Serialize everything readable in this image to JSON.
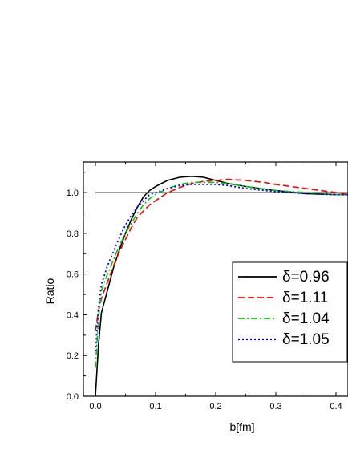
{
  "chart_data": {
    "type": "line",
    "title": "",
    "xlabel": "b[fm]",
    "ylabel": "Ratio",
    "xlim": [
      -0.02,
      0.42
    ],
    "ylim": [
      0.0,
      1.15
    ],
    "x_ticks": [
      0.0,
      0.1,
      0.2,
      0.3,
      0.4
    ],
    "x_tick_labels": [
      "0.0",
      "0.1",
      "0.2",
      "0.3",
      "0.4"
    ],
    "y_ticks": [
      0.0,
      0.2,
      0.4,
      0.6,
      0.8,
      1.0
    ],
    "y_tick_labels": [
      "0.0",
      "0.2",
      "0.4",
      "0.6",
      "0.8",
      "1.0"
    ],
    "grid": false,
    "legend_position": "center-right",
    "reference_line": {
      "y": 1.0,
      "x_range": [
        0.0,
        0.42
      ],
      "color": "#000000"
    },
    "series": [
      {
        "name": "δ=0.96",
        "color": "#000000",
        "dash": "solid",
        "x": [
          0.0,
          0.005,
          0.01,
          0.02,
          0.03,
          0.04,
          0.05,
          0.06,
          0.07,
          0.08,
          0.09,
          0.1,
          0.12,
          0.14,
          0.16,
          0.18,
          0.2,
          0.22,
          0.25,
          0.3,
          0.35,
          0.4,
          0.42
        ],
        "y": [
          0.0,
          0.25,
          0.41,
          0.52,
          0.63,
          0.72,
          0.8,
          0.87,
          0.93,
          0.98,
          1.01,
          1.03,
          1.06,
          1.075,
          1.08,
          1.075,
          1.06,
          1.045,
          1.03,
          1.01,
          0.995,
          0.99,
          0.99
        ]
      },
      {
        "name": "δ=1.11",
        "color": "#ff0000",
        "dash": "dashed",
        "x": [
          0.0,
          0.005,
          0.01,
          0.02,
          0.03,
          0.04,
          0.05,
          0.06,
          0.07,
          0.08,
          0.09,
          0.1,
          0.12,
          0.14,
          0.16,
          0.18,
          0.2,
          0.22,
          0.25,
          0.28,
          0.3,
          0.35,
          0.4,
          0.42
        ],
        "y": [
          0.32,
          0.42,
          0.48,
          0.56,
          0.64,
          0.71,
          0.77,
          0.83,
          0.88,
          0.91,
          0.94,
          0.96,
          1.0,
          1.025,
          1.045,
          1.055,
          1.06,
          1.065,
          1.06,
          1.05,
          1.04,
          1.02,
          1.0,
          0.995
        ]
      },
      {
        "name": "δ=1.04",
        "color": "#00cc00",
        "dash": "dashdot",
        "x": [
          0.0,
          0.005,
          0.01,
          0.02,
          0.03,
          0.04,
          0.05,
          0.06,
          0.07,
          0.08,
          0.09,
          0.1,
          0.12,
          0.14,
          0.16,
          0.18,
          0.2,
          0.22,
          0.25,
          0.3,
          0.35,
          0.4,
          0.42
        ],
        "y": [
          0.14,
          0.38,
          0.52,
          0.6,
          0.67,
          0.74,
          0.8,
          0.85,
          0.9,
          0.94,
          0.97,
          0.99,
          1.02,
          1.04,
          1.05,
          1.05,
          1.05,
          1.045,
          1.03,
          1.01,
          1.0,
          0.99,
          0.99
        ]
      },
      {
        "name": "δ=1.05",
        "color": "#0000ff",
        "dash": "dotted",
        "x": [
          0.0,
          0.005,
          0.01,
          0.02,
          0.03,
          0.04,
          0.05,
          0.06,
          0.07,
          0.08,
          0.09,
          0.1,
          0.12,
          0.14,
          0.16,
          0.18,
          0.2,
          0.22,
          0.25,
          0.3,
          0.35,
          0.4,
          0.42
        ],
        "y": [
          0.22,
          0.43,
          0.55,
          0.64,
          0.71,
          0.78,
          0.84,
          0.89,
          0.93,
          0.96,
          0.99,
          1.0,
          1.02,
          1.035,
          1.04,
          1.04,
          1.04,
          1.035,
          1.02,
          1.005,
          0.995,
          0.99,
          0.99
        ]
      }
    ]
  }
}
